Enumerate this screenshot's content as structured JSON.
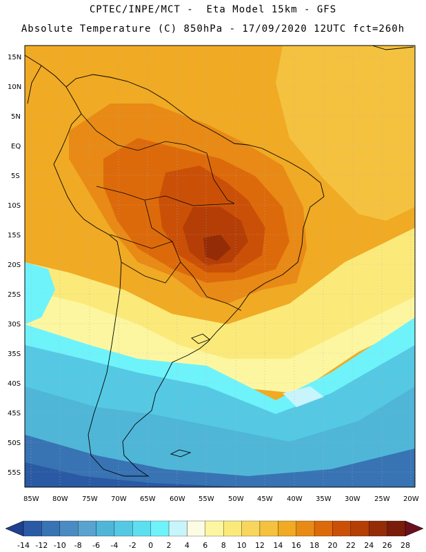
{
  "header": {
    "line1": "CPTEC/INPE/MCT -  Eta Model 15km - GFS",
    "line2": "Absolute Temperature (C) 850hPa - 17/09/2020 12UTC fct=260h"
  },
  "map": {
    "lat_labels": [
      "15N",
      "10N",
      "5N",
      "EQ",
      "5S",
      "10S",
      "15S",
      "20S",
      "25S",
      "30S",
      "35S",
      "40S",
      "45S",
      "50S",
      "55S"
    ],
    "lon_labels": [
      "85W",
      "80W",
      "75W",
      "70W",
      "65W",
      "60W",
      "55W",
      "50W",
      "45W",
      "40W",
      "35W",
      "30W",
      "25W",
      "20W"
    ]
  },
  "colorbar": {
    "labels": [
      "-14",
      "-12",
      "-10",
      "-8",
      "-6",
      "-4",
      "-2",
      "0",
      "2",
      "4",
      "6",
      "8",
      "10",
      "12",
      "14",
      "16",
      "18",
      "20",
      "22",
      "24",
      "26",
      "28"
    ],
    "colors": [
      "#1f3f8f",
      "#2a5aa4",
      "#3873b4",
      "#4a8bc2",
      "#58a3cf",
      "#4fb6d8",
      "#55c9e3",
      "#5edff0",
      "#6ff3fb",
      "#c8f4fb",
      "#fdfbe3",
      "#fdf6a0",
      "#fbea7a",
      "#f8d65d",
      "#f4c23f",
      "#f0aa23",
      "#e88a15",
      "#dd6a0a",
      "#cb5007",
      "#b43e06",
      "#952c08",
      "#7a1c0a",
      "#6a0f1e"
    ]
  }
}
